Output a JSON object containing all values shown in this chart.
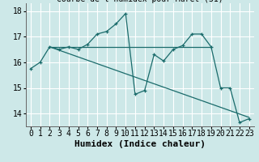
{
  "xlabel": "Humidex (Indice chaleur)",
  "ylabel": "",
  "bg_color": "#cde8e8",
  "grid_color": "#ffffff",
  "line_color": "#1a6b6b",
  "xlim": [
    -0.5,
    23.5
  ],
  "ylim": [
    13.5,
    18.3
  ],
  "yticks": [
    14,
    15,
    16,
    17,
    18
  ],
  "xticks": [
    0,
    1,
    2,
    3,
    4,
    5,
    6,
    7,
    8,
    9,
    10,
    11,
    12,
    13,
    14,
    15,
    16,
    17,
    18,
    19,
    20,
    21,
    22,
    23
  ],
  "series1_x": [
    0,
    1,
    2,
    3,
    4,
    5,
    6,
    7,
    8,
    9,
    10,
    11,
    12,
    13,
    14,
    15,
    16,
    17,
    18,
    19,
    20,
    21,
    22,
    23
  ],
  "series1_y": [
    15.75,
    16.0,
    16.6,
    16.5,
    16.6,
    16.5,
    16.7,
    17.1,
    17.2,
    17.5,
    17.9,
    14.75,
    14.9,
    16.3,
    16.05,
    16.5,
    16.65,
    17.1,
    17.1,
    16.6,
    15.0,
    15.0,
    13.65,
    13.8
  ],
  "series2_x": [
    2,
    19
  ],
  "series2_y": [
    16.6,
    16.6
  ],
  "series3_x": [
    2,
    23
  ],
  "series3_y": [
    16.6,
    13.85
  ],
  "font_family": "monospace",
  "tick_fontsize": 7,
  "label_fontsize": 8,
  "title_fontsize": 7
}
